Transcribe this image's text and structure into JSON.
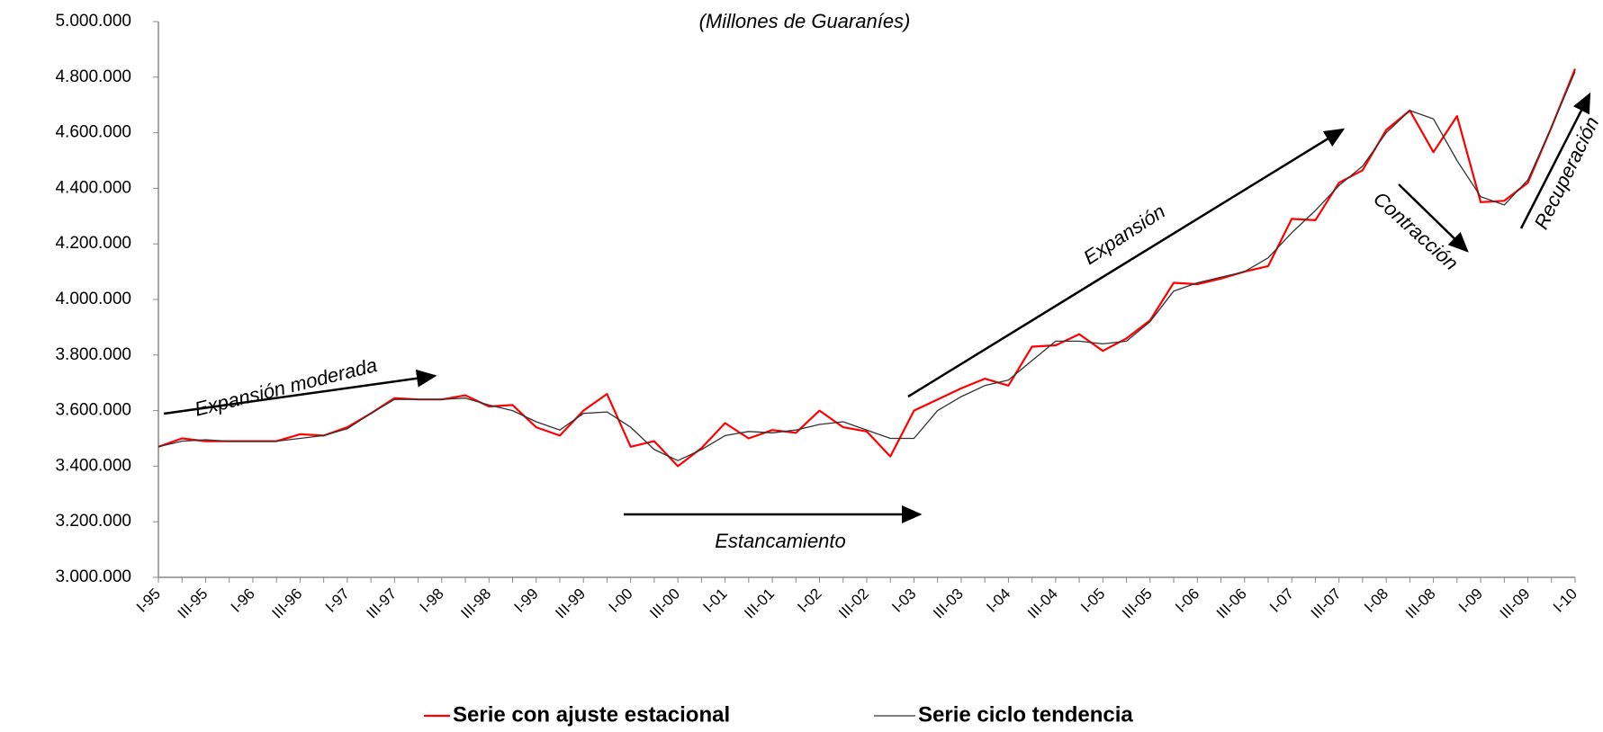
{
  "chart_data": {
    "type": "line",
    "subtitle": "(Millones de Guaraníes)",
    "categories": [
      "I-95",
      null,
      "III-95",
      null,
      "I-96",
      null,
      "III-96",
      null,
      "I-97",
      null,
      "III-97",
      null,
      "I-98",
      null,
      "III-98",
      null,
      "I-99",
      null,
      "III-99",
      null,
      "I-00",
      null,
      "III-00",
      null,
      "I-01",
      null,
      "III-01",
      null,
      "I-02",
      null,
      "III-02",
      null,
      "I-03",
      null,
      "III-03",
      null,
      "I-04",
      null,
      "III-04",
      null,
      "I-05",
      null,
      "III-05",
      null,
      "I-06",
      null,
      "III-06",
      null,
      "I-07",
      null,
      "III-07",
      null,
      "I-08",
      null,
      "III-08",
      null,
      "I-09",
      null,
      "III-09",
      null,
      "I-10"
    ],
    "series": [
      {
        "name": "Serie con ajuste estacional",
        "color": "#ff0000",
        "values": [
          3470000,
          3500000,
          3490000,
          3490000,
          3490000,
          3490000,
          3515000,
          3510000,
          3540000,
          3590000,
          3645000,
          3640000,
          3640000,
          3655000,
          3615000,
          3620000,
          3540000,
          3510000,
          3600000,
          3660000,
          3470000,
          3490000,
          3400000,
          3465000,
          3555000,
          3500000,
          3530000,
          3520000,
          3600000,
          3540000,
          3525000,
          3435000,
          3600000,
          3640000,
          3680000,
          3715000,
          3690000,
          3830000,
          3835000,
          3875000,
          3815000,
          3860000,
          3925000,
          4060000,
          4055000,
          4075000,
          4100000,
          4120000,
          4290000,
          4285000,
          4420000,
          4465000,
          4610000,
          4680000,
          4530000,
          4660000,
          4350000,
          4355000,
          4420000,
          4620000,
          4830000
        ]
      },
      {
        "name": "Serie ciclo tendencia",
        "color": "#333333",
        "values": [
          3470000,
          3490000,
          3495000,
          3490000,
          3490000,
          3490000,
          3500000,
          3510000,
          3535000,
          3590000,
          3640000,
          3640000,
          3640000,
          3645000,
          3620000,
          3600000,
          3560000,
          3530000,
          3590000,
          3595000,
          3540000,
          3460000,
          3420000,
          3460000,
          3510000,
          3525000,
          3520000,
          3530000,
          3550000,
          3560000,
          3530000,
          3500000,
          3500000,
          3600000,
          3650000,
          3690000,
          3710000,
          3780000,
          3850000,
          3850000,
          3840000,
          3850000,
          3920000,
          4030000,
          4060000,
          4080000,
          4100000,
          4150000,
          4240000,
          4320000,
          4410000,
          4480000,
          4600000,
          4680000,
          4650000,
          4500000,
          4370000,
          4340000,
          4430000,
          4620000,
          4820000
        ]
      }
    ],
    "ylim": [
      3000000,
      5000000
    ],
    "yticks": [
      {
        "value": 3000000,
        "label": "3.000.000"
      },
      {
        "value": 3200000,
        "label": "3.200.000"
      },
      {
        "value": 3400000,
        "label": "3.400.000"
      },
      {
        "value": 3600000,
        "label": "3.600.000"
      },
      {
        "value": 3800000,
        "label": "3.800.000"
      },
      {
        "value": 4000000,
        "label": "4.000.000"
      },
      {
        "value": 4200000,
        "label": "4.200.000"
      },
      {
        "value": 4400000,
        "label": "4.400.000"
      },
      {
        "value": 4600000,
        "label": "4.600.000"
      },
      {
        "value": 4800000,
        "label": "4.800.000"
      },
      {
        "value": 5000000,
        "label": "5.000.000"
      }
    ],
    "grid": false,
    "annotations": [
      "Expansión moderada",
      "Estancamiento",
      "Expansión",
      "Contracción",
      "Recuperación"
    ]
  }
}
